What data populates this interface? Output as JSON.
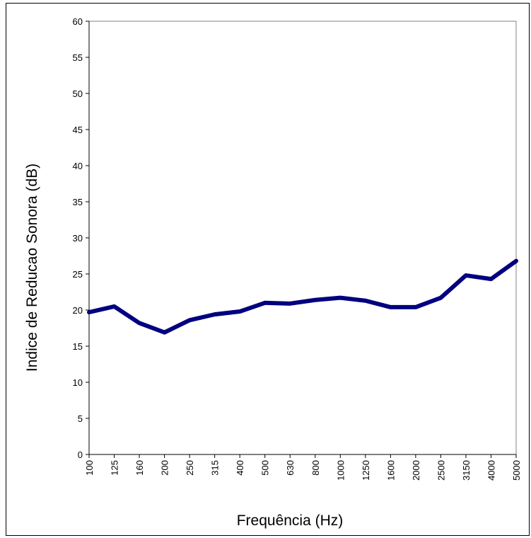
{
  "chart_data": {
    "type": "line",
    "title": "",
    "xlabel": "Frequência (Hz)",
    "ylabel": "Indice de Reducao Sonora (dB)",
    "categories": [
      "100",
      "125",
      "160",
      "200",
      "250",
      "315",
      "400",
      "500",
      "630",
      "800",
      "1000",
      "1250",
      "1600",
      "2000",
      "2500",
      "3150",
      "4000",
      "5000"
    ],
    "series": [
      {
        "values": [
          19.7,
          20.5,
          18.2,
          16.9,
          18.6,
          19.4,
          19.8,
          21.0,
          20.9,
          21.4,
          21.7,
          21.3,
          20.4,
          20.4,
          21.7,
          24.8,
          24.3,
          26.8
        ],
        "color": "#000080"
      }
    ],
    "ylim": [
      0,
      60
    ],
    "yticks": [
      0,
      5,
      10,
      15,
      20,
      25,
      30,
      35,
      40,
      45,
      50,
      55,
      60
    ],
    "grid": false,
    "legend": "none",
    "colors": {
      "line": "#000080",
      "axis": "#000000",
      "plot_border": "#808080",
      "background": "#ffffff"
    }
  }
}
